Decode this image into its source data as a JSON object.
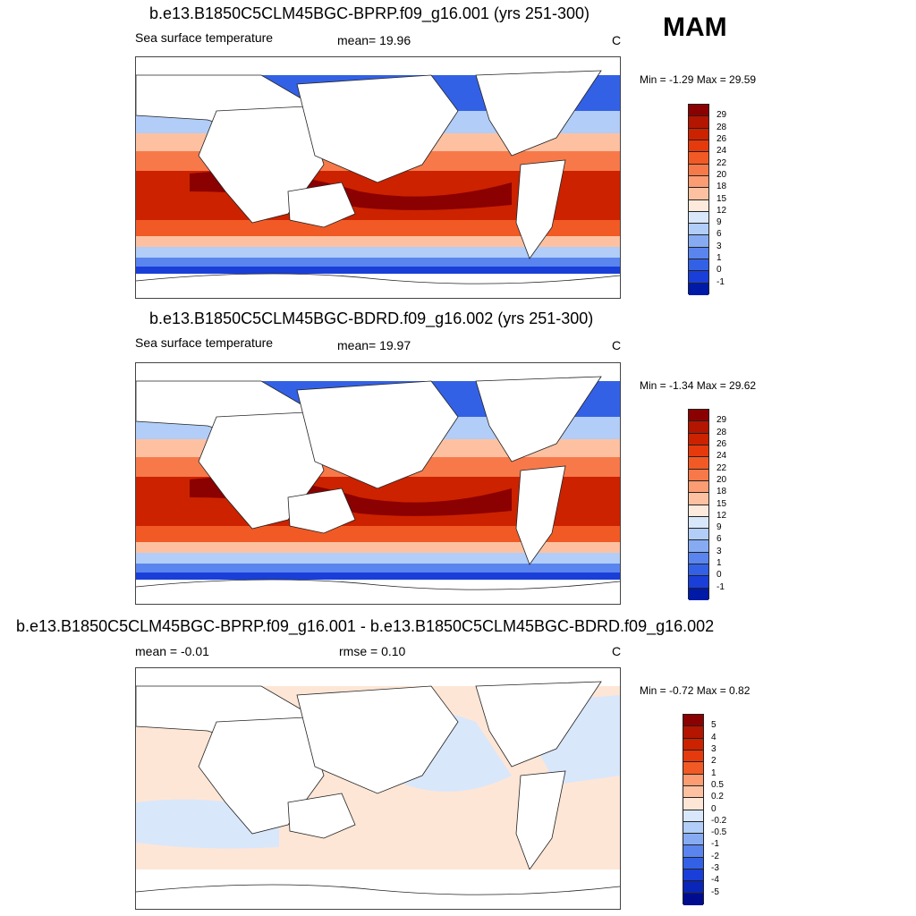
{
  "season": "MAM",
  "panels": [
    {
      "title": "b.e13.B1850C5CLM45BGC-BPRP.f09_g16.001 (yrs 251-300)",
      "left_text": "Sea surface temperature",
      "mid_text": "mean=  19.96",
      "units": "C",
      "minmax": "Min =  -1.29 Max =  29.59"
    },
    {
      "title": "b.e13.B1850C5CLM45BGC-BDRD.f09_g16.002 (yrs 251-300)",
      "left_text": "Sea surface temperature",
      "mid_text": "mean=  19.97",
      "units": "C",
      "minmax": "Min =  -1.34 Max =  29.62"
    },
    {
      "title": "b.e13.B1850C5CLM45BGC-BPRP.f09_g16.001 - b.e13.B1850C5CLM45BGC-BDRD.f09_g16.002",
      "left_text": "mean =  -0.01",
      "mid_text": "rmse =   0.10",
      "units": "C",
      "minmax": "Min =  -0.72 Max =   0.82"
    }
  ],
  "colorbar_sst": {
    "labels": [
      "29",
      "28",
      "26",
      "24",
      "22",
      "20",
      "18",
      "15",
      "12",
      "9",
      "6",
      "3",
      "1",
      "0",
      "-1"
    ],
    "colors": [
      "#8b0000",
      "#b31500",
      "#cc2200",
      "#e63a0c",
      "#f25a25",
      "#f7794a",
      "#fb9c72",
      "#fdc1a1",
      "#feeadc",
      "#d9e7fb",
      "#b1cdf8",
      "#86abf3",
      "#5a85ef",
      "#3361e6",
      "#1a3fd8",
      "#001aa8"
    ]
  },
  "colorbar_diff": {
    "labels": [
      "5",
      "4",
      "3",
      "2",
      "1",
      "0.5",
      "0.2",
      "0",
      "-0.2",
      "-0.5",
      "-1",
      "-2",
      "-3",
      "-4",
      "-5"
    ],
    "colors": [
      "#8b0000",
      "#b31500",
      "#cc2200",
      "#e63a0c",
      "#f25a25",
      "#fb9c72",
      "#fdc1a1",
      "#fee6d6",
      "#d9e7fb",
      "#b1cdf8",
      "#86abf3",
      "#5a85ef",
      "#3361e6",
      "#1a3fd8",
      "#0a26b8",
      "#000c90"
    ]
  }
}
